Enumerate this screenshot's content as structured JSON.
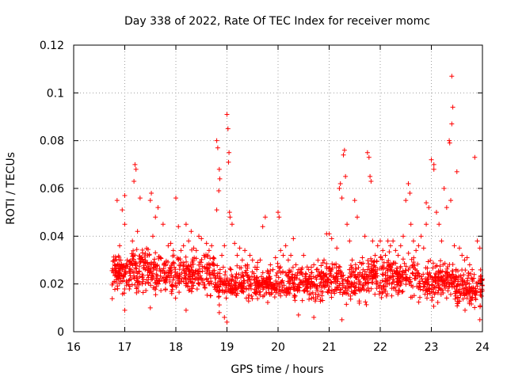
{
  "chart_data": {
    "type": "scatter",
    "title": "Day 338 of 2022, Rate Of TEC Index for receiver momc",
    "xlabel": "GPS time / hours",
    "ylabel": "ROTI / TECUs",
    "xlim": [
      16,
      24
    ],
    "ylim": [
      0,
      0.12
    ],
    "x_ticks": [
      "16",
      "17",
      "18",
      "19",
      "20",
      "21",
      "22",
      "23",
      "24"
    ],
    "y_ticks": [
      "0",
      "0.02",
      "0.04",
      "0.06",
      "0.08",
      "0.1",
      "0.12"
    ],
    "grid": true,
    "marker": "plus",
    "color": "#ff0000",
    "series": [
      {
        "values": [
          [
            16.8,
            0.028
          ],
          [
            16.85,
            0.055
          ],
          [
            16.9,
            0.036
          ],
          [
            16.95,
            0.051
          ],
          [
            17.0,
            0.045
          ],
          [
            17.05,
            0.03
          ],
          [
            17.1,
            0.019
          ],
          [
            17.15,
            0.038
          ],
          [
            17.2,
            0.07
          ],
          [
            17.25,
            0.042
          ],
          [
            17.3,
            0.056
          ],
          [
            17.35,
            0.033
          ],
          [
            17.4,
            0.026
          ],
          [
            17.45,
            0.032
          ],
          [
            17.5,
            0.055
          ],
          [
            17.55,
            0.04
          ],
          [
            17.6,
            0.048
          ],
          [
            17.65,
            0.052
          ],
          [
            17.7,
            0.031
          ],
          [
            17.75,
            0.045
          ],
          [
            17.8,
            0.028
          ],
          [
            17.85,
            0.036
          ],
          [
            17.9,
            0.037
          ],
          [
            17.95,
            0.034
          ],
          [
            18.0,
            0.056
          ],
          [
            18.05,
            0.044
          ],
          [
            18.1,
            0.034
          ],
          [
            18.15,
            0.036
          ],
          [
            18.2,
            0.045
          ],
          [
            18.25,
            0.038
          ],
          [
            18.3,
            0.042
          ],
          [
            18.35,
            0.035
          ],
          [
            18.4,
            0.034
          ],
          [
            18.45,
            0.04
          ],
          [
            18.5,
            0.039
          ],
          [
            18.55,
            0.032
          ],
          [
            18.6,
            0.037
          ],
          [
            18.65,
            0.034
          ],
          [
            18.7,
            0.036
          ],
          [
            18.75,
            0.028
          ],
          [
            18.8,
            0.08
          ],
          [
            18.85,
            0.068
          ],
          [
            18.9,
            0.032
          ],
          [
            18.95,
            0.036
          ],
          [
            19.0,
            0.091
          ],
          [
            19.05,
            0.05
          ],
          [
            19.1,
            0.045
          ],
          [
            19.15,
            0.037
          ],
          [
            19.2,
            0.032
          ],
          [
            19.25,
            0.035
          ],
          [
            19.3,
            0.03
          ],
          [
            19.35,
            0.034
          ],
          [
            19.4,
            0.028
          ],
          [
            19.45,
            0.032
          ],
          [
            19.5,
            0.03
          ],
          [
            19.55,
            0.027
          ],
          [
            19.6,
            0.029
          ],
          [
            19.65,
            0.03
          ],
          [
            19.7,
            0.044
          ],
          [
            19.75,
            0.048
          ],
          [
            19.8,
            0.025
          ],
          [
            19.85,
            0.028
          ],
          [
            19.9,
            0.026
          ],
          [
            19.95,
            0.031
          ],
          [
            20.0,
            0.05
          ],
          [
            20.05,
            0.034
          ],
          [
            20.1,
            0.032
          ],
          [
            20.15,
            0.036
          ],
          [
            20.2,
            0.03
          ],
          [
            20.25,
            0.032
          ],
          [
            20.3,
            0.039
          ],
          [
            20.35,
            0.028
          ],
          [
            20.4,
            0.026
          ],
          [
            20.45,
            0.025
          ],
          [
            20.5,
            0.032
          ],
          [
            20.55,
            0.024
          ],
          [
            20.6,
            0.026
          ],
          [
            20.65,
            0.027
          ],
          [
            20.7,
            0.028
          ],
          [
            20.75,
            0.026
          ],
          [
            20.8,
            0.025
          ],
          [
            20.85,
            0.022
          ],
          [
            20.9,
            0.03
          ],
          [
            20.95,
            0.041
          ],
          [
            21.0,
            0.041
          ],
          [
            21.05,
            0.039
          ],
          [
            21.1,
            0.028
          ],
          [
            21.15,
            0.035
          ],
          [
            21.2,
            0.06
          ],
          [
            21.25,
            0.056
          ],
          [
            21.3,
            0.076
          ],
          [
            21.35,
            0.045
          ],
          [
            21.4,
            0.038
          ],
          [
            21.45,
            0.03
          ],
          [
            21.5,
            0.055
          ],
          [
            21.55,
            0.048
          ],
          [
            21.6,
            0.029
          ],
          [
            21.65,
            0.031
          ],
          [
            21.7,
            0.04
          ],
          [
            21.75,
            0.075
          ],
          [
            21.8,
            0.065
          ],
          [
            21.85,
            0.038
          ],
          [
            21.9,
            0.032
          ],
          [
            21.95,
            0.036
          ],
          [
            22.0,
            0.038
          ],
          [
            22.05,
            0.034
          ],
          [
            22.1,
            0.032
          ],
          [
            22.15,
            0.038
          ],
          [
            22.2,
            0.036
          ],
          [
            22.25,
            0.038
          ],
          [
            22.3,
            0.034
          ],
          [
            22.35,
            0.032
          ],
          [
            22.4,
            0.036
          ],
          [
            22.45,
            0.04
          ],
          [
            22.5,
            0.055
          ],
          [
            22.55,
            0.062
          ],
          [
            22.6,
            0.045
          ],
          [
            22.65,
            0.038
          ],
          [
            22.7,
            0.034
          ],
          [
            22.75,
            0.036
          ],
          [
            22.8,
            0.04
          ],
          [
            22.85,
            0.035
          ],
          [
            22.9,
            0.045
          ],
          [
            22.95,
            0.052
          ],
          [
            23.0,
            0.072
          ],
          [
            23.05,
            0.068
          ],
          [
            23.1,
            0.05
          ],
          [
            23.15,
            0.045
          ],
          [
            23.2,
            0.038
          ],
          [
            23.25,
            0.06
          ],
          [
            23.3,
            0.052
          ],
          [
            23.35,
            0.08
          ],
          [
            23.4,
            0.107
          ],
          [
            23.45,
            0.036
          ],
          [
            23.5,
            0.067
          ],
          [
            23.55,
            0.035
          ],
          [
            23.6,
            0.032
          ],
          [
            23.65,
            0.03
          ],
          [
            23.7,
            0.031
          ],
          [
            23.75,
            0.028
          ],
          [
            23.8,
            0.026
          ],
          [
            23.85,
            0.073
          ],
          [
            23.9,
            0.038
          ],
          [
            23.95,
            0.035
          ],
          [
            24.0,
            0.022
          ],
          [
            18.82,
            0.077
          ],
          [
            18.86,
            0.064
          ],
          [
            18.84,
            0.059
          ],
          [
            19.02,
            0.085
          ],
          [
            19.04,
            0.075
          ],
          [
            19.03,
            0.071
          ],
          [
            17.22,
            0.068
          ],
          [
            17.18,
            0.063
          ],
          [
            23.42,
            0.094
          ],
          [
            23.4,
            0.087
          ],
          [
            23.36,
            0.079
          ],
          [
            23.05,
            0.07
          ],
          [
            21.28,
            0.074
          ],
          [
            21.32,
            0.065
          ],
          [
            21.22,
            0.062
          ],
          [
            21.78,
            0.073
          ],
          [
            21.82,
            0.063
          ],
          [
            22.58,
            0.058
          ],
          [
            22.9,
            0.054
          ],
          [
            23.38,
            0.055
          ],
          [
            18.8,
            0.051
          ],
          [
            19.06,
            0.048
          ],
          [
            20.02,
            0.048
          ],
          [
            17.52,
            0.058
          ],
          [
            17.0,
            0.057
          ],
          [
            18.95,
            0.006
          ],
          [
            19.0,
            0.004
          ],
          [
            18.85,
            0.008
          ],
          [
            20.7,
            0.006
          ],
          [
            21.25,
            0.005
          ],
          [
            23.95,
            0.005
          ],
          [
            17.0,
            0.009
          ],
          [
            17.5,
            0.01
          ],
          [
            18.2,
            0.009
          ],
          [
            20.4,
            0.007
          ]
        ]
      }
    ],
    "density_bands": [
      {
        "x_range": [
          16.75,
          17.75
        ],
        "y_range": [
          0.012,
          0.038
        ],
        "n": 260
      },
      {
        "x_range": [
          17.75,
          18.75
        ],
        "y_range": [
          0.012,
          0.036
        ],
        "n": 230
      },
      {
        "x_range": [
          18.75,
          19.75
        ],
        "y_range": [
          0.01,
          0.03
        ],
        "n": 230
      },
      {
        "x_range": [
          19.75,
          20.75
        ],
        "y_range": [
          0.01,
          0.03
        ],
        "n": 230
      },
      {
        "x_range": [
          20.75,
          21.75
        ],
        "y_range": [
          0.01,
          0.032
        ],
        "n": 230
      },
      {
        "x_range": [
          21.75,
          22.75
        ],
        "y_range": [
          0.012,
          0.035
        ],
        "n": 240
      },
      {
        "x_range": [
          22.75,
          23.5
        ],
        "y_range": [
          0.01,
          0.032
        ],
        "n": 190
      },
      {
        "x_range": [
          23.5,
          24.0
        ],
        "y_range": [
          0.008,
          0.028
        ],
        "n": 130
      }
    ]
  }
}
